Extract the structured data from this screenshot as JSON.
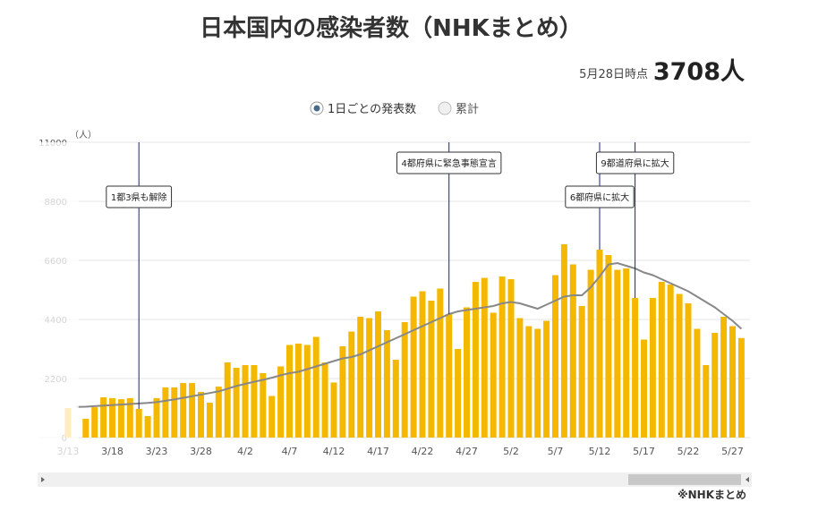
{
  "chart_data": {
    "type": "bar",
    "title": "日本国内の感染者数（NHKまとめ）",
    "as_of": "5月28日時点",
    "headline": "3708人",
    "options": [
      "1日ごとの発表数",
      "累計"
    ],
    "selected_option": 0,
    "y_unit": "（人）",
    "source": "※NHKまとめ",
    "categories": [
      "3/13",
      null,
      null,
      null,
      null,
      "3/18",
      null,
      null,
      null,
      null,
      "3/23",
      null,
      null,
      null,
      null,
      "3/28",
      null,
      null,
      null,
      null,
      "4/2",
      null,
      null,
      null,
      null,
      "4/7",
      null,
      null,
      null,
      null,
      "4/12",
      null,
      null,
      null,
      null,
      "4/17",
      null,
      null,
      null,
      null,
      "4/22",
      null,
      null,
      null,
      null,
      "4/27",
      null,
      null,
      null,
      null,
      "5/2",
      null,
      null,
      null,
      null,
      "5/7",
      null,
      null,
      null,
      null,
      "5/12",
      null,
      null,
      null,
      null,
      "5/17",
      null,
      null,
      null,
      null,
      "5/22",
      null,
      null,
      null,
      null,
      "5/27",
      null
    ],
    "series": [
      {
        "name": "1日ごとの発表数",
        "color": "#f5b800",
        "values": [
          1100,
          null,
          700,
          1130,
          1500,
          1470,
          1430,
          1470,
          1070,
          800,
          1470,
          1870,
          1870,
          2030,
          2030,
          1700,
          1300,
          1900,
          2800,
          2600,
          2700,
          2700,
          2400,
          1550,
          2650,
          3450,
          3500,
          3450,
          3750,
          2800,
          2050,
          3400,
          3950,
          4500,
          4450,
          4700,
          4000,
          2900,
          4300,
          5250,
          5450,
          5100,
          5550,
          4600,
          3300,
          4850,
          5800,
          5950,
          4650,
          6000,
          5900,
          4450,
          4150,
          4050,
          4350,
          6050,
          7200,
          6450,
          4900,
          6250,
          7000,
          6800,
          6250,
          6300,
          5200,
          3650,
          5200,
          5800,
          5700,
          5350,
          5000,
          4050,
          2700,
          3900,
          4500,
          4150,
          3708
        ]
      },
      {
        "name": "7日間平均",
        "color": "#888888",
        "type": "line",
        "values": [
          null,
          1140,
          1150,
          1170,
          1190,
          1210,
          1230,
          1250,
          1270,
          1290,
          1320,
          1370,
          1420,
          1480,
          1540,
          1600,
          1660,
          1720,
          1820,
          1920,
          2000,
          2080,
          2150,
          2230,
          2320,
          2400,
          2450,
          2550,
          2650,
          2750,
          2850,
          2950,
          3000,
          3100,
          3250,
          3400,
          3550,
          3700,
          3850,
          4000,
          4150,
          4300,
          4450,
          4600,
          4700,
          4750,
          4800,
          4850,
          4900,
          5000,
          5050,
          5000,
          4900,
          4800,
          4950,
          5100,
          5250,
          5300,
          5300,
          5600,
          6000,
          6450,
          6500,
          6400,
          6300,
          6150,
          6050,
          5900,
          5750,
          5600,
          5450,
          5250,
          5050,
          4850,
          4600,
          4350,
          4050
        ]
      }
    ],
    "ylim": [
      0,
      11000
    ],
    "yticks": [
      0,
      2200,
      4400,
      6600,
      8800,
      11000
    ],
    "grid": true,
    "annotations": [
      {
        "index": 8,
        "text": "1都3県も解除"
      },
      {
        "index": 43,
        "text": "4都府県に緊急事態宣言"
      },
      {
        "index": 60,
        "text": "6都府県に拡大"
      },
      {
        "index": 64,
        "text": "9都道府県に拡大"
      }
    ]
  }
}
